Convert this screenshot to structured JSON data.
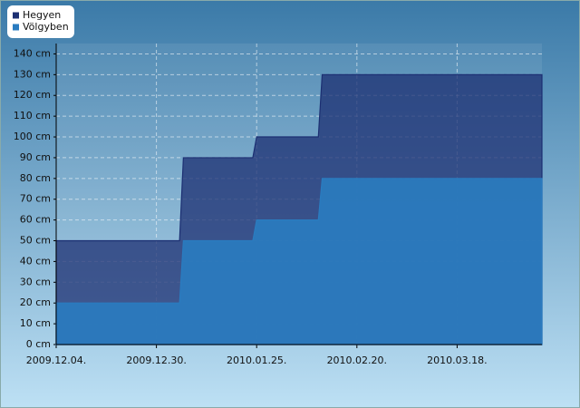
{
  "chart_data": {
    "type": "area",
    "x": [
      "2009.12.04.",
      "2010.01.05.",
      "2010.01.06.",
      "2010.01.24.",
      "2010.01.25.",
      "2010.02.10.",
      "2010.02.11.",
      "2010.04.09."
    ],
    "series": [
      {
        "name": "Hegyen",
        "color": "#1c2f72",
        "values": [
          50,
          50,
          90,
          90,
          100,
          100,
          130,
          130
        ]
      },
      {
        "name": "Völgyben",
        "color": "#2a7cc0",
        "values": [
          20,
          20,
          50,
          50,
          60,
          60,
          80,
          80
        ]
      }
    ],
    "xlim": [
      "2009.12.04.",
      "2010.04.09."
    ],
    "xticks": [
      "2009.12.04.",
      "2009.12.30.",
      "2010.01.25.",
      "2010.02.20.",
      "2010.03.18."
    ],
    "ylim": [
      0,
      145
    ],
    "yticks": [
      {
        "value": 0,
        "label": "0 cm"
      },
      {
        "value": 10,
        "label": "10 cm"
      },
      {
        "value": 20,
        "label": "20 cm"
      },
      {
        "value": 30,
        "label": "30 cm"
      },
      {
        "value": 40,
        "label": "40 cm"
      },
      {
        "value": 50,
        "label": "50 cm"
      },
      {
        "value": 60,
        "label": "60 cm"
      },
      {
        "value": 70,
        "label": "70 cm"
      },
      {
        "value": 80,
        "label": "80 cm"
      },
      {
        "value": 90,
        "label": "90 cm"
      },
      {
        "value": 100,
        "label": "100 cm"
      },
      {
        "value": 110,
        "label": "110 cm"
      },
      {
        "value": 120,
        "label": "120 cm"
      },
      {
        "value": 130,
        "label": "130 cm"
      },
      {
        "value": 140,
        "label": "140 cm"
      }
    ],
    "grid": true,
    "legend": "top-left"
  }
}
